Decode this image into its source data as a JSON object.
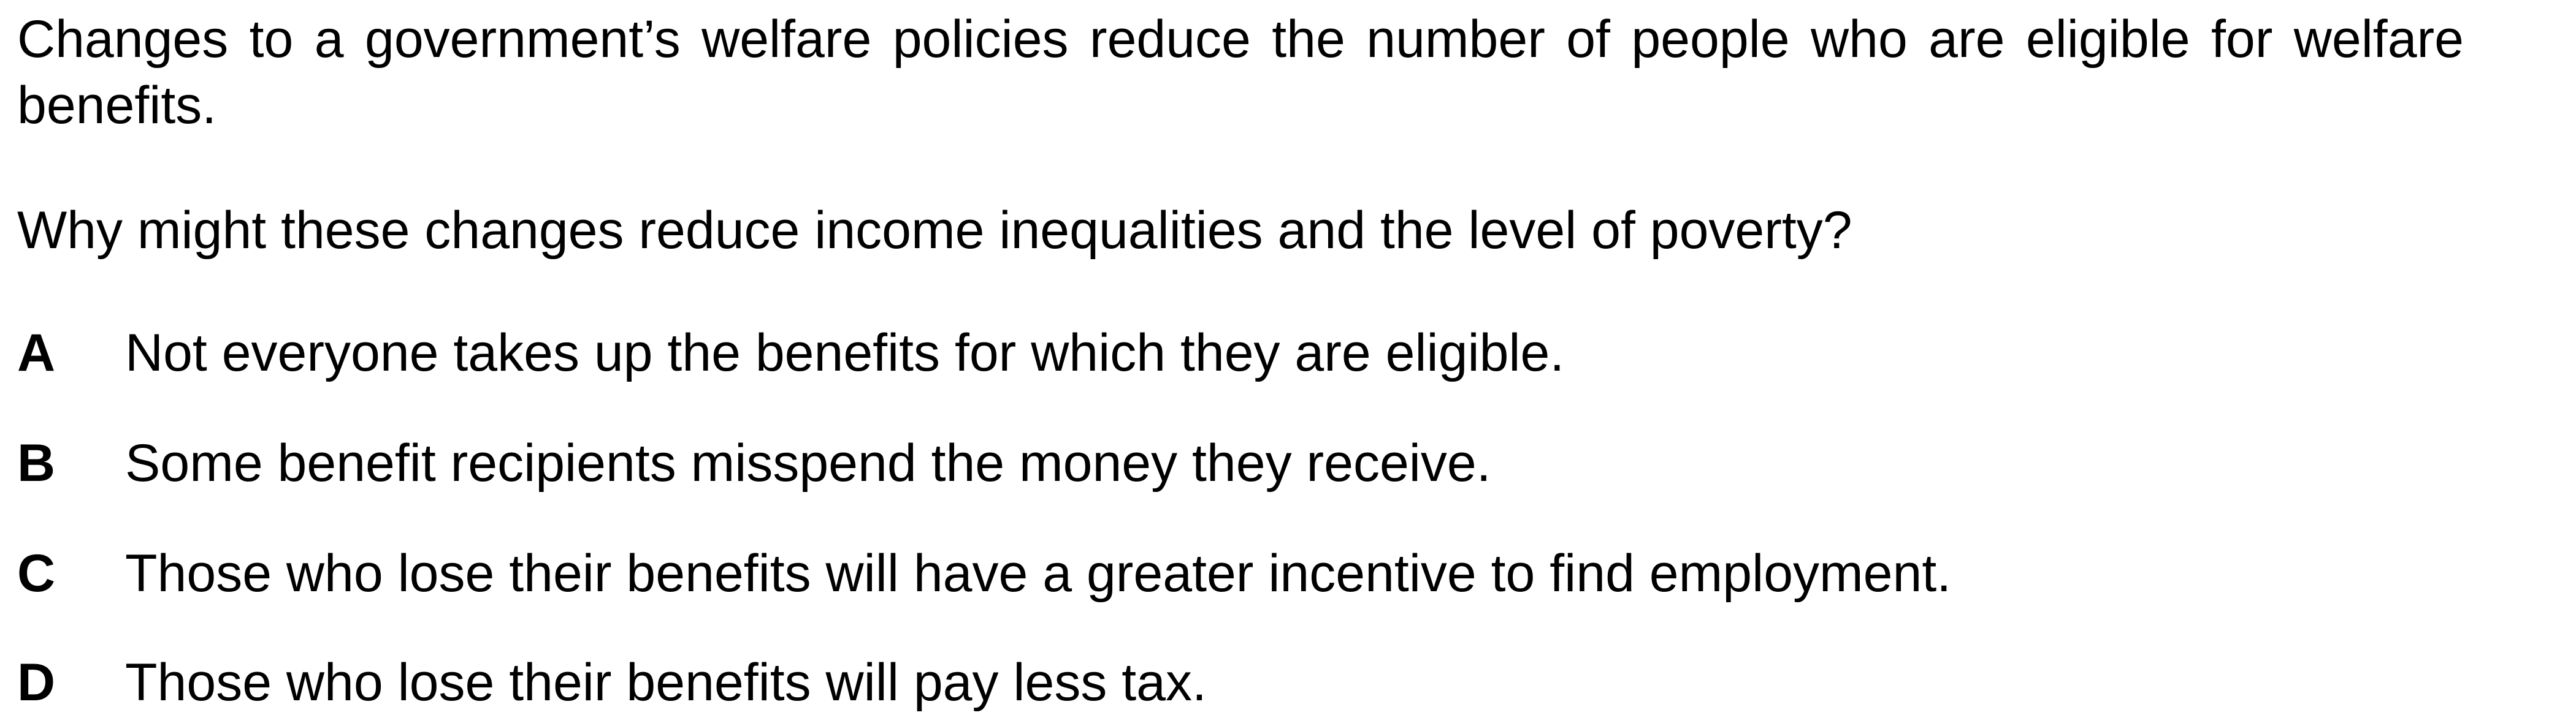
{
  "question": {
    "stem": "Changes to a government’s welfare policies reduce the number of people who are eligible for welfare benefits.",
    "prompt": "Why might these changes reduce income inequalities and the level of poverty?",
    "options": [
      {
        "letter": "A",
        "text": "Not everyone takes up the benefits for which they are eligible."
      },
      {
        "letter": "B",
        "text": "Some benefit recipients misspend the money they receive."
      },
      {
        "letter": "C",
        "text": "Those who lose their benefits will have a greater incentive to find employment."
      },
      {
        "letter": "D",
        "text": "Those who lose their benefits will pay less tax."
      }
    ]
  }
}
